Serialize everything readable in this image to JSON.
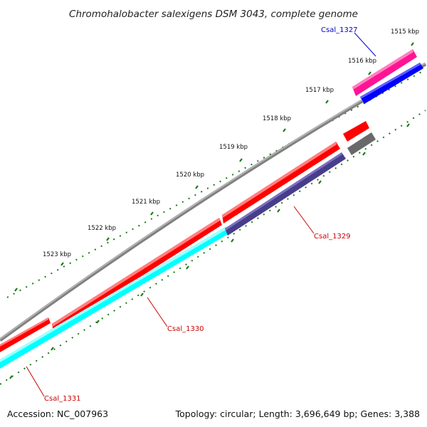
{
  "title": "Chromohalobacter salexigens DSM 3043, complete genome",
  "footer": {
    "accession": "Accession: NC_007963",
    "summary": "Topology: circular; Length: 3,696,649 bp; Genes: 3,388"
  },
  "scale_labels": [
    "1515 kbp",
    "1516 kbp",
    "1517 kbp",
    "1518 kbp",
    "1519 kbp",
    "1520 kbp",
    "1521 kbp",
    "1522 kbp",
    "1523 kbp"
  ],
  "genes": [
    {
      "name": "Csal_1327",
      "label_color": "#0000cc"
    },
    {
      "name": "Csal_1329",
      "label_color": "#cc0000"
    },
    {
      "name": "Csal_1330",
      "label_color": "#cc0000"
    },
    {
      "name": "Csal_1331",
      "label_color": "#cc0000"
    }
  ],
  "colors": {
    "backbone": "#808080",
    "cds_forward": "#ff0000",
    "cds_blue": "#0000ff",
    "cds_pink": "#ff1493",
    "cds_cyan": "#00ffff",
    "cds_navy": "#483d8b",
    "cds_gray": "#696969",
    "ticks": "#1a7a1a"
  }
}
